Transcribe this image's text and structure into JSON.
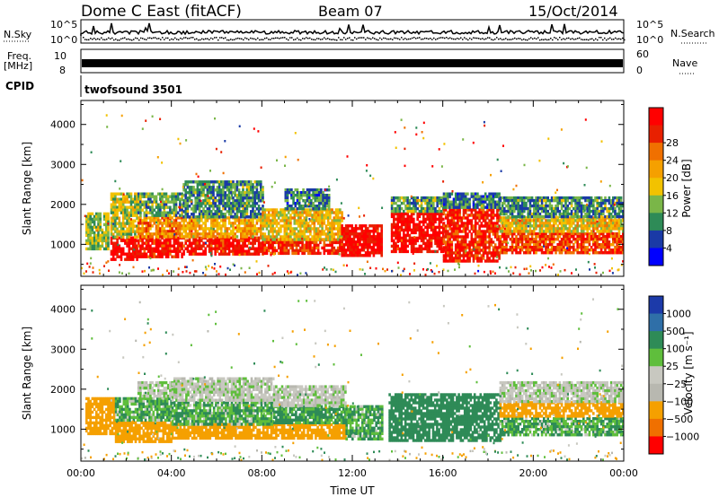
{
  "header": {
    "station": "Dome C East (fitACF)",
    "beam": "Beam 07",
    "date": "15/Oct/2014"
  },
  "strips": {
    "nsky_label": "N.Sky",
    "nsky_top": "10^5",
    "nsky_bottom": "10^0",
    "nsearch_label": "N.Search",
    "nsearch_top": "10^5",
    "nsearch_bottom": "10^0",
    "freq_label_1": "Freq.",
    "freq_label_2": "[MHz]",
    "freq_top": "10",
    "freq_bottom": "8",
    "nave_label": "Nave",
    "nave_top": "60",
    "nave_bottom": "0",
    "cpid_label": "CPID",
    "cpid_value": "twofsound 3501"
  },
  "chart_data": [
    {
      "type": "heatmap",
      "panel": "power",
      "ylabel": "Slant Range [km]",
      "xlabel": "",
      "ylim": [
        200,
        4600
      ],
      "yticks": [
        "1000",
        "2000",
        "3000",
        "4000"
      ],
      "colorbar_label": "Power [dB]",
      "colorbar_ticks": [
        "4",
        "8",
        "12",
        "16",
        "20",
        "24",
        "28"
      ],
      "colorbar_colors": [
        "#0000ff",
        "#1a3aa6",
        "#2e8b57",
        "#7ab648",
        "#f2c200",
        "#f5a000",
        "#f07000",
        "#e82000",
        "#ff0000"
      ],
      "regions": [
        {
          "t0": 0.2,
          "t1": 1.2,
          "r0": 900,
          "r1": 1800,
          "v": 12
        },
        {
          "t0": 1.3,
          "t1": 2.5,
          "r0": 650,
          "r1": 1200,
          "v": 28
        },
        {
          "t0": 1.3,
          "t1": 2.5,
          "r0": 1200,
          "r1": 2300,
          "v": 14
        },
        {
          "t0": 2.5,
          "t1": 4.5,
          "r0": 700,
          "r1": 1200,
          "v": 27
        },
        {
          "t0": 2.5,
          "t1": 4.5,
          "r0": 1200,
          "r1": 1700,
          "v": 20
        },
        {
          "t0": 2.5,
          "t1": 4.5,
          "r0": 1700,
          "r1": 2300,
          "v": 10
        },
        {
          "t0": 4.5,
          "t1": 8.0,
          "r0": 750,
          "r1": 1200,
          "v": 27
        },
        {
          "t0": 4.5,
          "t1": 8.0,
          "r0": 1200,
          "r1": 1700,
          "v": 18
        },
        {
          "t0": 4.5,
          "t1": 8.0,
          "r0": 1700,
          "r1": 2600,
          "v": 9
        },
        {
          "t0": 8.0,
          "t1": 11.5,
          "r0": 750,
          "r1": 1150,
          "v": 25
        },
        {
          "t0": 8.0,
          "t1": 11.5,
          "r0": 1150,
          "r1": 1900,
          "v": 16
        },
        {
          "t0": 9.0,
          "t1": 11.0,
          "r0": 1900,
          "r1": 2400,
          "v": 8
        },
        {
          "t0": 11.5,
          "t1": 13.3,
          "r0": 700,
          "r1": 1500,
          "v": 28
        },
        {
          "t0": 13.7,
          "t1": 16.0,
          "r0": 800,
          "r1": 1800,
          "v": 28
        },
        {
          "t0": 13.7,
          "t1": 16.0,
          "r0": 1800,
          "r1": 2200,
          "v": 10
        },
        {
          "t0": 16.0,
          "t1": 18.5,
          "r0": 600,
          "r1": 1900,
          "v": 26
        },
        {
          "t0": 16.0,
          "t1": 18.5,
          "r0": 1900,
          "r1": 2300,
          "v": 8
        },
        {
          "t0": 18.5,
          "t1": 24.0,
          "r0": 800,
          "r1": 1300,
          "v": 24
        },
        {
          "t0": 18.5,
          "t1": 24.0,
          "r0": 1300,
          "r1": 1700,
          "v": 16
        },
        {
          "t0": 18.5,
          "t1": 24.0,
          "r0": 1700,
          "r1": 2200,
          "v": 9
        }
      ]
    },
    {
      "type": "heatmap",
      "panel": "velocity",
      "ylabel": "Slant Range [km]",
      "xlabel": "Time UT",
      "ylim": [
        200,
        4600
      ],
      "yticks": [
        "1000",
        "2000",
        "3000",
        "4000"
      ],
      "xticks": [
        "00:00",
        "04:00",
        "08:00",
        "12:00",
        "16:00",
        "20:00",
        "00:00"
      ],
      "colorbar_label": "Velocity [m s⁻¹]",
      "colorbar_ticks": [
        "1000",
        "500",
        "100",
        "25",
        "−25",
        "−100",
        "−500",
        "−1000"
      ],
      "colorbar_colors": [
        "#1c3aa9",
        "#2f6fa8",
        "#2e8b57",
        "#5fbe3c",
        "#c8c8c0",
        "#b8b8b0",
        "#f5a000",
        "#f07000",
        "#ff0000"
      ],
      "regions": [
        {
          "t0": 0.2,
          "t1": 1.5,
          "r0": 900,
          "r1": 1800,
          "v": -150
        },
        {
          "t0": 1.5,
          "t1": 4.0,
          "r0": 700,
          "r1": 1200,
          "v": -200
        },
        {
          "t0": 1.5,
          "t1": 4.0,
          "r0": 1200,
          "r1": 1800,
          "v": 60
        },
        {
          "t0": 2.5,
          "t1": 4.5,
          "r0": 1800,
          "r1": 2200,
          "v": 0
        },
        {
          "t0": 4.0,
          "t1": 8.5,
          "r0": 750,
          "r1": 1150,
          "v": -150
        },
        {
          "t0": 4.0,
          "t1": 8.5,
          "r0": 1150,
          "r1": 1700,
          "v": 60
        },
        {
          "t0": 4.0,
          "t1": 8.5,
          "r0": 1700,
          "r1": 2300,
          "v": 0
        },
        {
          "t0": 8.5,
          "t1": 11.7,
          "r0": 750,
          "r1": 1150,
          "v": -150
        },
        {
          "t0": 8.5,
          "t1": 11.7,
          "r0": 1150,
          "r1": 1600,
          "v": 80
        },
        {
          "t0": 8.5,
          "t1": 11.7,
          "r0": 1600,
          "r1": 2100,
          "v": 0
        },
        {
          "t0": 11.7,
          "t1": 13.3,
          "r0": 750,
          "r1": 1600,
          "v": 60
        },
        {
          "t0": 13.6,
          "t1": 18.5,
          "r0": 700,
          "r1": 1900,
          "v": 200
        },
        {
          "t0": 18.5,
          "t1": 24.0,
          "r0": 850,
          "r1": 1300,
          "v": 60
        },
        {
          "t0": 18.5,
          "t1": 24.0,
          "r0": 1300,
          "r1": 1700,
          "v": -200
        },
        {
          "t0": 18.5,
          "t1": 24.0,
          "r0": 1700,
          "r1": 2200,
          "v": 0
        }
      ]
    }
  ]
}
